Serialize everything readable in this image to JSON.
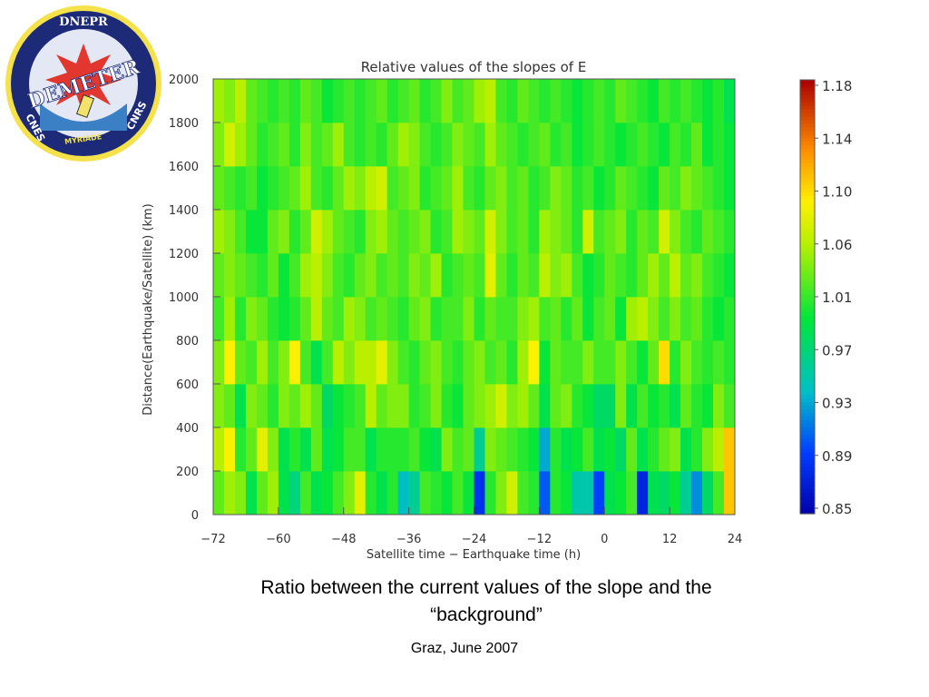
{
  "logo": {
    "top_text": "DNEPR",
    "main_text": "DEMETER",
    "left_text": "CNES",
    "right_text": "CNRS",
    "bottom_text": "MYRIADE"
  },
  "caption": {
    "line1": "Ratio between the current values of the slope and the",
    "line2": "“background”"
  },
  "footer": "Graz, June 2007",
  "chart_data": {
    "type": "heatmap",
    "title": "Relative values of the slopes of E",
    "xlabel": "Satellite time − Earthquake time (h)",
    "ylabel": "Distance(Earthquake/Satellite) (km)",
    "xlim": [
      -72,
      24
    ],
    "ylim": [
      0,
      2000
    ],
    "x_ticks": [
      -72,
      -60,
      -48,
      -36,
      -24,
      -12,
      0,
      12,
      24
    ],
    "x_tick_labels": [
      "−72",
      "−60",
      "−48",
      "−36",
      "−24",
      "−12",
      "0",
      "12",
      "24"
    ],
    "y_ticks": [
      0,
      200,
      400,
      600,
      800,
      1000,
      1200,
      1400,
      1600,
      1800,
      2000
    ],
    "x_bin_width_h": 2,
    "y_bin_height_km": 200,
    "x_bin_starts": [
      -72,
      -70,
      -68,
      -66,
      -64,
      -62,
      -60,
      -58,
      -56,
      -54,
      -52,
      -50,
      -48,
      -46,
      -44,
      -42,
      -40,
      -38,
      -36,
      -34,
      -32,
      -30,
      -28,
      -26,
      -24,
      -22,
      -20,
      -18,
      -16,
      -14,
      -12,
      -10,
      -8,
      -6,
      -4,
      -2,
      0,
      2,
      4,
      6,
      8,
      10,
      12,
      14,
      16,
      18,
      20,
      22
    ],
    "colorbar": {
      "min": 0.85,
      "max": 1.2,
      "tick_values": [
        1.18,
        1.14,
        1.1,
        1.06,
        1.01,
        0.97,
        0.93,
        0.89,
        0.85
      ],
      "tick_labels": [
        "1.18",
        "1.14",
        "1.10",
        "1.06",
        "1.01",
        "0.97",
        "0.93",
        "0.89",
        "0.85"
      ]
    },
    "rows_y_start_km": [
      0,
      200,
      400,
      600,
      800,
      1000,
      1200,
      1400,
      1600,
      1800
    ],
    "values": [
      [
        1.04,
        1.06,
        1.05,
        1.0,
        1.04,
        1.06,
        1.0,
        0.98,
        1.03,
        1.0,
        1.01,
        1.03,
        1.05,
        1.09,
        1.02,
        1.0,
        1.02,
        0.95,
        0.97,
        1.03,
        1.02,
        1.01,
        1.03,
        1.01,
        0.89,
        1.02,
        1.05,
        1.08,
        1.03,
        1.02,
        0.91,
        1.02,
        1.01,
        0.96,
        0.96,
        0.9,
        1.0,
        1.01,
        1.03,
        0.88,
        1.0,
        0.99,
        1.01,
        0.97,
        0.93,
        0.99,
        1.03,
        1.12
      ],
      [
        1.07,
        1.1,
        1.02,
        1.04,
        1.09,
        1.05,
        1.0,
        1.02,
        1.0,
        1.04,
        1.0,
        1.01,
        1.03,
        1.03,
        1.0,
        1.02,
        1.02,
        1.02,
        1.03,
        1.01,
        1.0,
        1.05,
        1.03,
        1.04,
        0.97,
        1.05,
        1.04,
        1.03,
        1.02,
        1.01,
        0.94,
        1.02,
        1.0,
        1.01,
        1.03,
        1.0,
        1.01,
        0.99,
        1.04,
        1.0,
        1.02,
        1.04,
        1.05,
        1.0,
        1.02,
        1.05,
        1.07,
        1.12
      ],
      [
        1.05,
        1.04,
        1.0,
        1.05,
        1.04,
        1.02,
        1.05,
        1.04,
        1.06,
        1.04,
        0.99,
        1.01,
        1.02,
        1.03,
        1.07,
        1.04,
        1.05,
        1.05,
        1.02,
        1.03,
        1.05,
        1.02,
        1.01,
        1.04,
        1.05,
        1.06,
        1.08,
        1.05,
        1.06,
        1.04,
        1.0,
        1.04,
        1.05,
        1.02,
        1.01,
        0.99,
        0.99,
        1.05,
        1.0,
        1.03,
        1.01,
        1.02,
        1.0,
        1.04,
        1.02,
        1.01,
        1.05,
        1.03
      ],
      [
        1.05,
        1.1,
        1.04,
        1.03,
        1.06,
        1.03,
        1.05,
        1.1,
        1.03,
        1.0,
        1.03,
        1.07,
        1.05,
        1.07,
        1.07,
        1.09,
        1.05,
        1.03,
        1.02,
        1.04,
        1.05,
        1.03,
        1.02,
        1.04,
        1.05,
        1.03,
        1.04,
        1.02,
        1.06,
        1.1,
        1.01,
        1.04,
        1.03,
        1.03,
        1.05,
        1.03,
        1.03,
        1.05,
        1.03,
        1.01,
        1.04,
        1.11,
        1.02,
        1.05,
        1.03,
        1.02,
        1.03,
        1.02
      ],
      [
        1.03,
        1.06,
        1.02,
        1.05,
        1.04,
        1.02,
        1.01,
        1.02,
        1.04,
        1.07,
        1.04,
        1.03,
        1.06,
        1.05,
        1.03,
        1.04,
        1.03,
        1.02,
        1.04,
        1.05,
        1.02,
        1.03,
        1.03,
        1.05,
        1.02,
        1.04,
        1.03,
        1.03,
        1.05,
        1.06,
        1.03,
        1.04,
        1.02,
        1.04,
        1.01,
        1.03,
        1.04,
        1.01,
        1.06,
        1.07,
        1.05,
        1.03,
        1.05,
        1.03,
        1.04,
        1.02,
        1.01,
        1.02
      ],
      [
        1.04,
        1.05,
        1.04,
        1.03,
        1.02,
        1.04,
        1.01,
        1.03,
        1.06,
        1.07,
        1.05,
        1.03,
        1.02,
        1.04,
        1.05,
        1.03,
        1.04,
        1.03,
        1.05,
        1.04,
        1.06,
        1.02,
        1.03,
        1.04,
        1.03,
        1.09,
        1.04,
        1.02,
        1.04,
        1.03,
        1.07,
        1.05,
        1.06,
        1.03,
        1.01,
        1.02,
        1.04,
        1.03,
        1.02,
        1.04,
        1.06,
        1.04,
        1.07,
        1.04,
        1.05,
        1.03,
        1.02,
        1.01
      ],
      [
        1.06,
        1.05,
        1.03,
        1.01,
        1.01,
        1.04,
        1.05,
        1.02,
        1.04,
        1.08,
        1.06,
        1.04,
        1.03,
        1.02,
        1.05,
        1.06,
        1.04,
        1.03,
        1.04,
        1.05,
        1.02,
        1.03,
        1.06,
        1.05,
        1.04,
        1.08,
        1.05,
        1.03,
        1.04,
        1.02,
        1.06,
        1.05,
        1.04,
        1.02,
        1.08,
        1.03,
        1.04,
        1.05,
        1.02,
        1.04,
        1.03,
        1.08,
        1.05,
        1.03,
        1.02,
        1.04,
        1.03,
        1.02
      ],
      [
        1.04,
        1.03,
        1.02,
        1.03,
        1.01,
        1.02,
        1.03,
        1.04,
        1.06,
        1.03,
        1.02,
        1.04,
        1.06,
        1.05,
        1.07,
        1.08,
        1.03,
        1.04,
        1.05,
        1.02,
        1.03,
        1.04,
        1.06,
        1.03,
        1.02,
        1.04,
        1.05,
        1.03,
        1.04,
        1.02,
        1.03,
        1.05,
        1.04,
        1.02,
        1.03,
        1.01,
        1.02,
        1.04,
        1.03,
        1.02,
        1.01,
        1.04,
        1.03,
        1.05,
        1.04,
        1.03,
        1.02,
        1.01
      ],
      [
        1.05,
        1.08,
        1.06,
        1.04,
        1.02,
        1.03,
        1.04,
        1.02,
        1.05,
        1.03,
        1.04,
        1.06,
        1.03,
        1.02,
        1.03,
        1.02,
        1.04,
        1.06,
        1.05,
        1.03,
        1.02,
        1.03,
        1.05,
        1.04,
        1.03,
        1.06,
        1.04,
        1.03,
        1.02,
        1.03,
        1.04,
        1.02,
        1.03,
        1.01,
        1.02,
        1.03,
        1.02,
        1.01,
        1.02,
        1.03,
        1.02,
        1.01,
        1.03,
        1.02,
        1.04,
        1.01,
        1.02,
        1.01
      ],
      [
        1.06,
        1.05,
        1.07,
        1.04,
        1.03,
        1.02,
        1.03,
        1.02,
        1.04,
        1.03,
        1.01,
        1.02,
        1.03,
        1.02,
        1.03,
        1.04,
        1.02,
        1.03,
        1.04,
        1.02,
        1.03,
        1.05,
        1.03,
        1.04,
        1.06,
        1.07,
        1.03,
        1.02,
        1.04,
        1.03,
        1.02,
        1.03,
        1.02,
        1.01,
        1.02,
        1.03,
        1.02,
        1.04,
        1.03,
        1.02,
        1.01,
        1.03,
        1.02,
        1.03,
        1.02,
        1.01,
        1.02,
        1.0
      ]
    ]
  }
}
